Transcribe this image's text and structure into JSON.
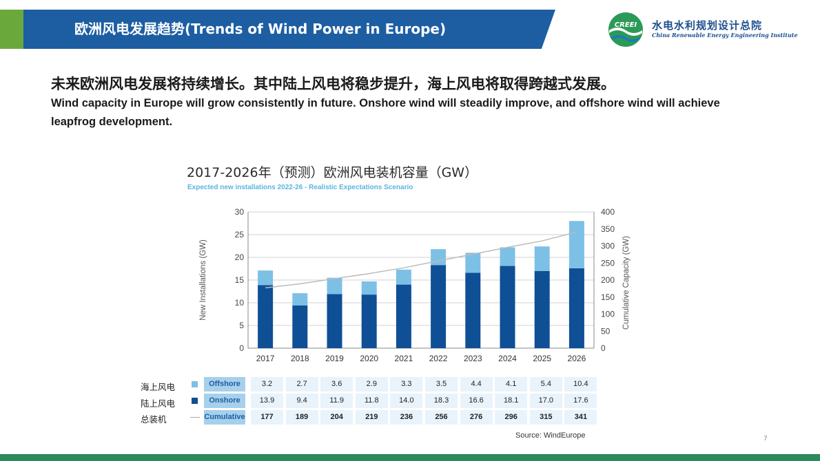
{
  "header": {
    "title": "欧洲风电发展趋势(Trends of Wind Power in Europe)"
  },
  "logo": {
    "mark_text": "CREEI",
    "org_name_cn": "水电水利规划设计总院",
    "org_name_en": "China Renewable Energy Engineering Institute"
  },
  "headline": {
    "cn": "未来欧洲风电发展将持续增长。其中陆上风电将稳步提升，海上风电将取得跨越式发展。",
    "en": "Wind capacity in Europe will grow consistently in future. Onshore wind will steadily improve, and offshore wind will achieve leapfrog development."
  },
  "chart_data": {
    "type": "bar",
    "stacked": true,
    "title": "2017-2026年（预测）欧洲风电装机容量（GW）",
    "subtitle": "Expected new installations 2022-26 - Realistic Expectations Scenario",
    "categories": [
      "2017",
      "2018",
      "2019",
      "2020",
      "2021",
      "2022",
      "2023",
      "2024",
      "2025",
      "2026"
    ],
    "series": [
      {
        "name": "Onshore",
        "name_cn": "陆上风电",
        "color": "#0e4f96",
        "values": [
          13.9,
          9.4,
          11.9,
          11.8,
          14.0,
          18.3,
          16.6,
          18.1,
          17.0,
          17.6
        ]
      },
      {
        "name": "Offshore",
        "name_cn": "海上风电",
        "color": "#7dc0e6",
        "values": [
          3.2,
          2.7,
          3.6,
          2.9,
          3.3,
          3.5,
          4.4,
          4.1,
          5.4,
          10.4
        ]
      }
    ],
    "line_series": {
      "name": "Cumulative",
      "name_cn": "总装机",
      "color": "#bbbbbb",
      "axis": "right",
      "values": [
        177,
        189,
        204,
        219,
        236,
        256,
        276,
        296,
        315,
        341
      ]
    },
    "ylabel": "New Installations (GW)",
    "ylim": [
      0,
      30
    ],
    "yticks": [
      0,
      5,
      10,
      15,
      20,
      25,
      30
    ],
    "ylabel_right": "Cumulative Capacity (GW)",
    "ylim_right": [
      0,
      400
    ],
    "yticks_right": [
      0,
      50,
      100,
      150,
      200,
      250,
      300,
      350,
      400
    ],
    "grid": true,
    "source": "Source: WindEurope"
  },
  "page_number": "7"
}
